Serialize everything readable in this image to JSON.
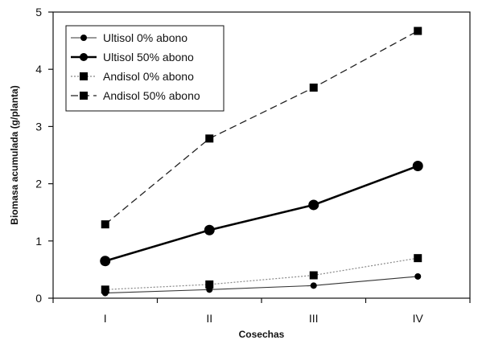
{
  "chart_data": {
    "type": "line",
    "xlabel": "Cosechas",
    "ylabel": "Biomasa acumulada (g/planta)",
    "categories": [
      "I",
      "II",
      "III",
      "IV"
    ],
    "ylim": [
      0,
      5
    ],
    "yticks": [
      "0",
      "1",
      "2",
      "3",
      "4",
      "5"
    ],
    "grid": false,
    "legend_position": "top-left",
    "series": [
      {
        "name": "Ultisol 0% abono",
        "values": [
          0.09,
          0.15,
          0.22,
          0.38
        ],
        "marker": "circle",
        "line": "thin-solid"
      },
      {
        "name": "Ultisol 50% abono",
        "values": [
          0.65,
          1.19,
          1.63,
          2.31
        ],
        "marker": "circle",
        "line": "thick-solid"
      },
      {
        "name": "Andisol 0% abono",
        "values": [
          0.15,
          0.24,
          0.4,
          0.7
        ],
        "marker": "square",
        "line": "dotted"
      },
      {
        "name": "Andisol 50% abono",
        "values": [
          1.29,
          2.79,
          3.68,
          4.67
        ],
        "marker": "square",
        "line": "dashed"
      }
    ]
  }
}
